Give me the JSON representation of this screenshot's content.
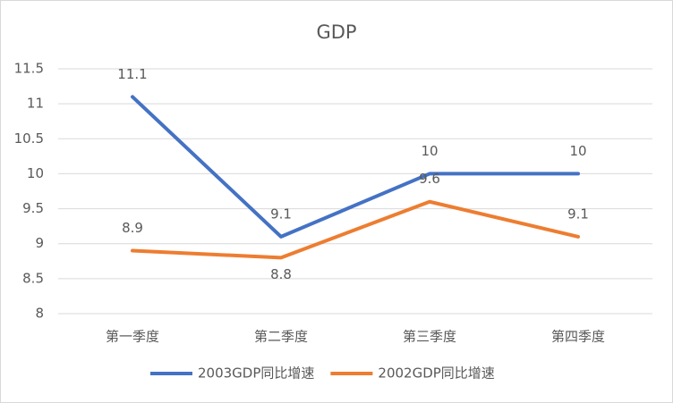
{
  "chart_data": {
    "type": "line",
    "title": "GDP",
    "categories": [
      "第一季度",
      "第二季度",
      "第三季度",
      "第四季度"
    ],
    "series": [
      {
        "name": "2003GDP同比增速",
        "color": "#4472c4",
        "values": [
          11.1,
          9.1,
          10,
          10
        ]
      },
      {
        "name": "2002GDP同比增速",
        "color": "#ed7d31",
        "values": [
          8.9,
          8.8,
          9.6,
          9.1
        ]
      }
    ],
    "ylim": [
      8,
      11.5
    ],
    "yticks": [
      8,
      8.5,
      9,
      9.5,
      10,
      10.5,
      11,
      11.5
    ],
    "grid": true,
    "legend": "bottom"
  }
}
